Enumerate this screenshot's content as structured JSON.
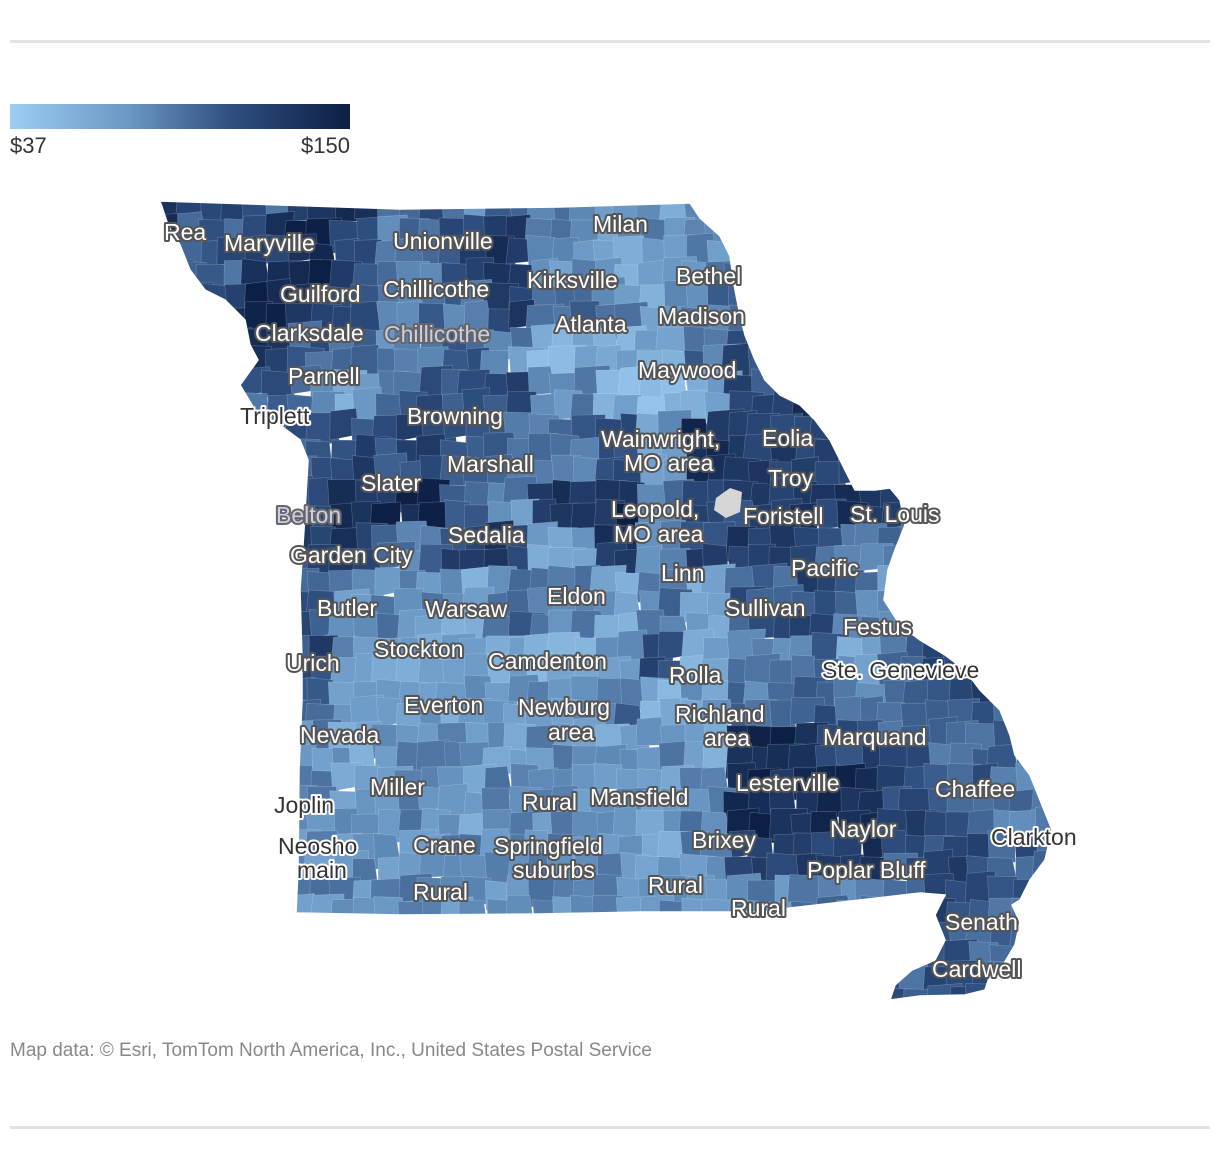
{
  "legend": {
    "min_label": "$37",
    "max_label": "$150",
    "min_value": 37,
    "max_value": 150,
    "color_low": "#9ccdf2",
    "color_high": "#0c1f45"
  },
  "no_data_color": "#d6d6d6",
  "labels": [
    {
      "text": "Rea",
      "style": "light"
    },
    {
      "text": "Maryville",
      "style": "light"
    },
    {
      "text": "Unionville",
      "style": "light"
    },
    {
      "text": "Milan",
      "style": "light"
    },
    {
      "text": "Guilford",
      "style": "light"
    },
    {
      "text": "Chillicothe",
      "style": "light"
    },
    {
      "text": "Kirksville",
      "style": "light"
    },
    {
      "text": "Bethel",
      "style": "light"
    },
    {
      "text": "Clarksdale",
      "style": "light"
    },
    {
      "text": "Chillicothe",
      "style": "muted"
    },
    {
      "text": "Atlanta",
      "style": "light"
    },
    {
      "text": "Madison",
      "style": "light"
    },
    {
      "text": "Parnell",
      "style": "light"
    },
    {
      "text": "Maywood",
      "style": "light"
    },
    {
      "text": "Triplett",
      "style": "dark"
    },
    {
      "text": "Browning",
      "style": "light"
    },
    {
      "text": "Wainwright,",
      "style": "light"
    },
    {
      "text": "MO area",
      "style": "light"
    },
    {
      "text": "Eolia",
      "style": "light"
    },
    {
      "text": "Marshall",
      "style": "light"
    },
    {
      "text": "Troy",
      "style": "light"
    },
    {
      "text": "Slater",
      "style": "light"
    },
    {
      "text": "Leopold,",
      "style": "light"
    },
    {
      "text": "MO area",
      "style": "light"
    },
    {
      "text": "Foristell",
      "style": "light"
    },
    {
      "text": "St. Louis",
      "style": "light"
    },
    {
      "text": "Belton",
      "style": "muted"
    },
    {
      "text": "Sedalia",
      "style": "light"
    },
    {
      "text": "Garden City",
      "style": "light"
    },
    {
      "text": "Linn",
      "style": "light"
    },
    {
      "text": "Pacific",
      "style": "light"
    },
    {
      "text": "Butler",
      "style": "light"
    },
    {
      "text": "Warsaw",
      "style": "light"
    },
    {
      "text": "Eldon",
      "style": "light"
    },
    {
      "text": "Sullivan",
      "style": "light"
    },
    {
      "text": "Festus",
      "style": "light"
    },
    {
      "text": "Urich",
      "style": "light"
    },
    {
      "text": "Stockton",
      "style": "light"
    },
    {
      "text": "Camdenton",
      "style": "light"
    },
    {
      "text": "Rolla",
      "style": "light"
    },
    {
      "text": "Ste. Genevieve",
      "style": "dark"
    },
    {
      "text": "Everton",
      "style": "light"
    },
    {
      "text": "Newburg",
      "style": "light"
    },
    {
      "text": "area",
      "style": "light"
    },
    {
      "text": "Richland",
      "style": "light"
    },
    {
      "text": "area",
      "style": "light"
    },
    {
      "text": "Nevada",
      "style": "light"
    },
    {
      "text": "Marquand",
      "style": "light"
    },
    {
      "text": "Lesterville",
      "style": "light"
    },
    {
      "text": "Miller",
      "style": "light"
    },
    {
      "text": "Chaffee",
      "style": "light"
    },
    {
      "text": "Joplin",
      "style": "dark"
    },
    {
      "text": "Rural",
      "style": "light"
    },
    {
      "text": "Mansfield",
      "style": "light"
    },
    {
      "text": "Naylor",
      "style": "light"
    },
    {
      "text": "Brixey",
      "style": "light"
    },
    {
      "text": "Clarkton",
      "style": "dark"
    },
    {
      "text": "Neosho",
      "style": "dark"
    },
    {
      "text": "main",
      "style": "dark"
    },
    {
      "text": "Crane",
      "style": "light"
    },
    {
      "text": "Springfield",
      "style": "light"
    },
    {
      "text": "suburbs",
      "style": "light"
    },
    {
      "text": "Poplar Bluff",
      "style": "light"
    },
    {
      "text": "Rural",
      "style": "light"
    },
    {
      "text": "Rural",
      "style": "light"
    },
    {
      "text": "Rural",
      "style": "light"
    },
    {
      "text": "Senath",
      "style": "light"
    },
    {
      "text": "Cardwell",
      "style": "light"
    }
  ],
  "source_text": "Map data: © Esri, TomTom North America, Inc., United States Postal Service"
}
